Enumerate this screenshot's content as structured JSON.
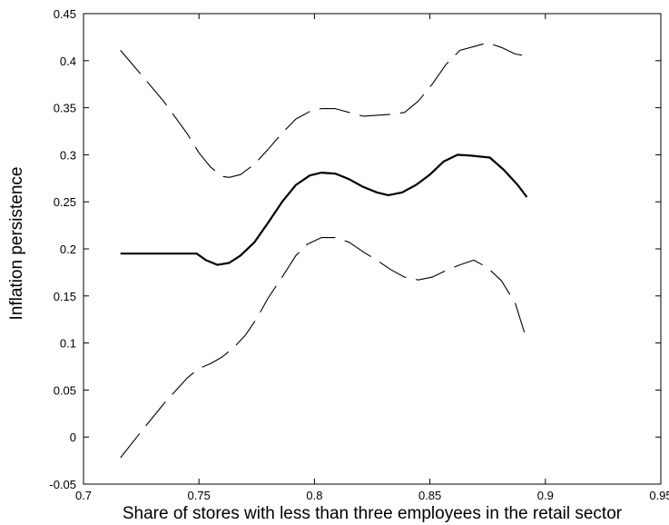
{
  "chart_data": {
    "type": "line",
    "xlabel": "Share of stores with less than three employees in the retail sector",
    "ylabel": "Inflation persistence",
    "xlim": [
      0.7,
      0.95
    ],
    "ylim": [
      -0.05,
      0.45
    ],
    "xticks": [
      "0.7",
      "0.75",
      "0.8",
      "0.85",
      "0.9",
      "0.95"
    ],
    "yticks": [
      "-0.05",
      "0",
      "0.05",
      "0.1",
      "0.15",
      "0.2",
      "0.25",
      "0.3",
      "0.35",
      "0.4",
      "0.45"
    ],
    "grid": false,
    "line_color": "#000000",
    "series": [
      {
        "style": "solid",
        "x": [
          0.716,
          0.72,
          0.73,
          0.74,
          0.749,
          0.753,
          0.758,
          0.763,
          0.768,
          0.774,
          0.78,
          0.786,
          0.792,
          0.798,
          0.803,
          0.809,
          0.815,
          0.821,
          0.827,
          0.832,
          0.838,
          0.844,
          0.85,
          0.856,
          0.862,
          0.868,
          0.876,
          0.882,
          0.888,
          0.892
        ],
        "y": [
          0.195,
          0.195,
          0.195,
          0.195,
          0.195,
          0.188,
          0.183,
          0.185,
          0.193,
          0.207,
          0.228,
          0.25,
          0.268,
          0.278,
          0.281,
          0.28,
          0.274,
          0.266,
          0.26,
          0.257,
          0.26,
          0.268,
          0.279,
          0.293,
          0.3,
          0.299,
          0.297,
          0.284,
          0.268,
          0.255
        ]
      },
      {
        "style": "dashed",
        "x": [
          0.716,
          0.725,
          0.735,
          0.745,
          0.75,
          0.755,
          0.76,
          0.763,
          0.768,
          0.774,
          0.78,
          0.786,
          0.792,
          0.798,
          0.803,
          0.809,
          0.815,
          0.821,
          0.827,
          0.833,
          0.839,
          0.845,
          0.851,
          0.857,
          0.863,
          0.869,
          0.875,
          0.881,
          0.887,
          0.892
        ],
        "y": [
          0.411,
          0.385,
          0.356,
          0.322,
          0.302,
          0.287,
          0.277,
          0.276,
          0.279,
          0.29,
          0.306,
          0.323,
          0.338,
          0.346,
          0.349,
          0.349,
          0.345,
          0.341,
          0.342,
          0.343,
          0.345,
          0.357,
          0.375,
          0.396,
          0.411,
          0.415,
          0.419,
          0.414,
          0.407,
          0.405
        ]
      },
      {
        "style": "dashed",
        "x": [
          0.716,
          0.725,
          0.735,
          0.745,
          0.75,
          0.755,
          0.76,
          0.765,
          0.77,
          0.775,
          0.78,
          0.786,
          0.792,
          0.797,
          0.803,
          0.809,
          0.815,
          0.821,
          0.827,
          0.833,
          0.839,
          0.845,
          0.851,
          0.857,
          0.863,
          0.869,
          0.875,
          0.881,
          0.887,
          0.892
        ],
        "y": [
          -0.022,
          0.006,
          0.036,
          0.063,
          0.073,
          0.078,
          0.085,
          0.095,
          0.108,
          0.126,
          0.148,
          0.17,
          0.193,
          0.205,
          0.212,
          0.212,
          0.207,
          0.197,
          0.188,
          0.178,
          0.17,
          0.167,
          0.17,
          0.177,
          0.183,
          0.188,
          0.18,
          0.166,
          0.142,
          0.103
        ]
      }
    ]
  }
}
